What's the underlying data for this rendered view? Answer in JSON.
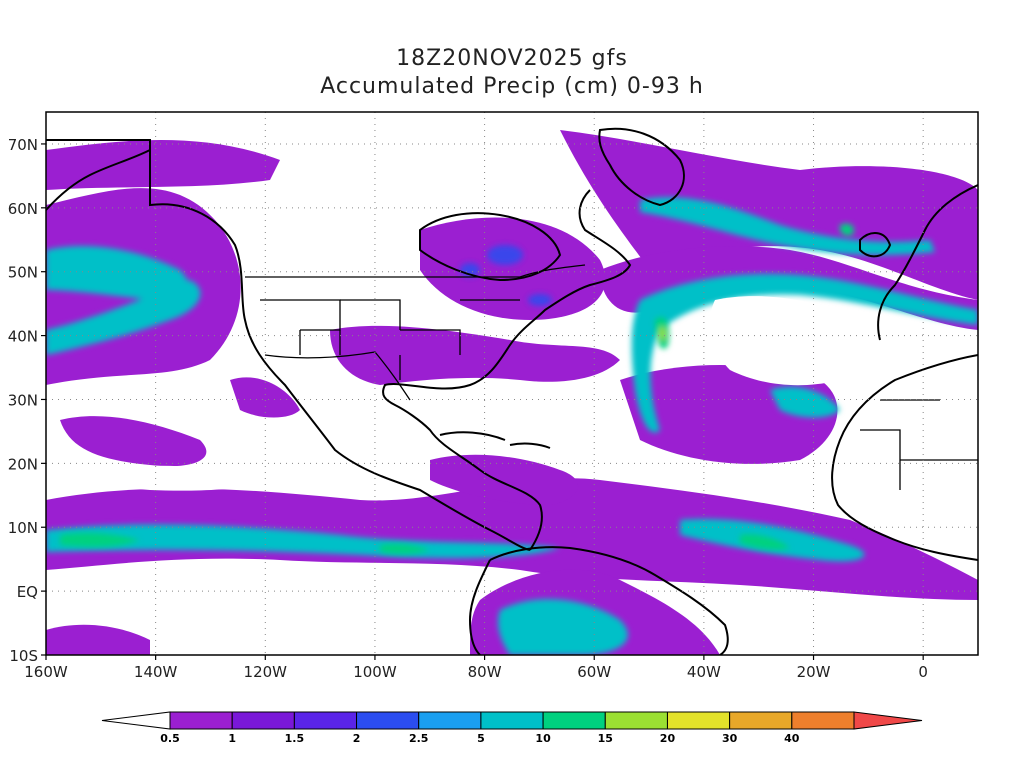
{
  "title": "18Z20NOV2025 gfs",
  "subtitle": "Accumulated Precip (cm) 0-93 h",
  "lat_labels": [
    "70N",
    "60N",
    "50N",
    "40N",
    "30N",
    "20N",
    "10N",
    "EQ",
    "10S"
  ],
  "lon_labels": [
    "160W",
    "140W",
    "120W",
    "100W",
    "80W",
    "60W",
    "40W",
    "20W",
    "0"
  ],
  "colorbar": {
    "colors": [
      "#ffffff",
      "#9b1fd1",
      "#7a18d8",
      "#5a24e8",
      "#2b4df0",
      "#1a9ff0",
      "#00c0c8",
      "#00d17f",
      "#9be032",
      "#e3e22a",
      "#e8a829",
      "#ee7f2c",
      "#f04848"
    ],
    "labels": [
      "0.5",
      "1",
      "1.5",
      "2",
      "2.5",
      "5",
      "10",
      "15",
      "20",
      "30",
      "40"
    ]
  },
  "palette": {
    "purple": "#9b1fd1",
    "violet": "#7a18d8",
    "teal": "#00c0c8",
    "green": "#00d17f",
    "lime": "#9be032",
    "blue": "#2b4df0"
  }
}
